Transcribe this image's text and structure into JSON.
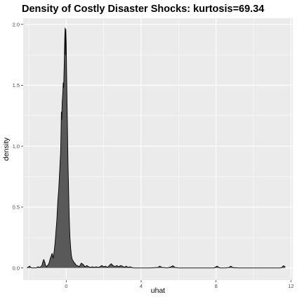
{
  "chart_data": {
    "type": "area",
    "title": "Density of Costly Disaster Shocks: kurtosis=69.34",
    "xlabel": "uhat",
    "ylabel": "density",
    "xlim": [
      -2.3,
      12.1
    ],
    "ylim": [
      -0.1,
      2.05
    ],
    "x_ticks": [
      0,
      4,
      8,
      12
    ],
    "x_tick_labels": [
      "0",
      "4",
      "8",
      "12"
    ],
    "y_ticks": [
      0.0,
      0.5,
      1.0,
      1.5,
      2.0
    ],
    "y_tick_labels": [
      "0.0",
      "0.5",
      "1.0",
      "1.5",
      "2.0"
    ],
    "grid": true,
    "legend": "none",
    "colors": {
      "panel": "#ebebeb",
      "grid": "#ffffff",
      "fill": "#595959",
      "line": "#000000"
    },
    "series": [
      {
        "x": [
          -2.1,
          -2.0,
          -1.95,
          -1.9,
          -1.8,
          -1.6,
          -1.5,
          -1.4,
          -1.3,
          -1.25,
          -1.2,
          -1.15,
          -1.1,
          -1.05,
          -1.0,
          -0.95,
          -0.9,
          -0.85,
          -0.8,
          -0.75,
          -0.7,
          -0.65,
          -0.6,
          -0.55,
          -0.5,
          -0.45,
          -0.4,
          -0.35,
          -0.3,
          -0.28,
          -0.26,
          -0.24,
          -0.22,
          -0.2,
          -0.18,
          -0.16,
          -0.14,
          -0.12,
          -0.1,
          -0.08,
          -0.06,
          -0.05,
          -0.04,
          -0.03,
          -0.02,
          -0.01,
          0.0,
          0.02,
          0.04,
          0.06,
          0.08,
          0.1,
          0.12,
          0.14,
          0.16,
          0.18,
          0.2,
          0.24,
          0.28,
          0.32,
          0.36,
          0.4,
          0.45,
          0.5,
          0.55,
          0.6,
          0.7,
          0.8,
          0.9,
          1.0,
          1.1,
          1.2,
          1.3,
          1.4,
          1.5,
          1.6,
          1.7,
          1.8,
          1.9,
          2.0,
          2.1,
          2.2,
          2.3,
          2.4,
          2.5,
          2.6,
          2.7,
          2.8,
          2.9,
          3.0,
          3.1,
          3.2,
          3.3,
          3.4,
          3.6,
          3.8,
          4.5,
          4.9,
          5.0,
          5.1,
          5.4,
          5.6,
          5.7,
          5.8,
          6.0,
          7.0,
          7.9,
          8.05,
          8.2,
          8.5,
          8.7,
          8.8,
          8.9,
          9.2,
          10.0,
          11.0,
          11.4,
          11.5,
          11.6,
          11.7
        ],
        "y": [
          0.0,
          0.01,
          0.015,
          0.005,
          0.0,
          0.002,
          0.01,
          0.005,
          0.02,
          0.05,
          0.07,
          0.05,
          0.02,
          0.01,
          0.02,
          0.03,
          0.05,
          0.08,
          0.1,
          0.12,
          0.08,
          0.13,
          0.2,
          0.3,
          0.4,
          0.55,
          0.65,
          0.8,
          0.95,
          1.1,
          1.28,
          1.22,
          1.35,
          1.4,
          1.45,
          1.52,
          1.48,
          1.6,
          1.72,
          1.88,
          1.97,
          1.75,
          1.82,
          1.86,
          1.96,
          1.9,
          1.85,
          1.6,
          1.4,
          1.22,
          1.0,
          0.82,
          0.7,
          0.55,
          0.42,
          0.33,
          0.25,
          0.16,
          0.1,
          0.07,
          0.06,
          0.05,
          0.04,
          0.03,
          0.02,
          0.02,
          0.01,
          0.04,
          0.03,
          0.01,
          0.02,
          0.01,
          0.005,
          0.01,
          0.005,
          0.01,
          0.005,
          0.01,
          0.02,
          0.01,
          0.015,
          0.005,
          0.02,
          0.035,
          0.02,
          0.01,
          0.02,
          0.01,
          0.02,
          0.015,
          0.005,
          0.015,
          0.005,
          0.01,
          0.0,
          0.0,
          0.0,
          0.005,
          0.015,
          0.005,
          0.0,
          0.01,
          0.018,
          0.005,
          0.0,
          0.0,
          0.0,
          0.015,
          0.0,
          0.0,
          0.005,
          0.015,
          0.003,
          0.0,
          0.0,
          0.0,
          0.0,
          0.003,
          0.018,
          0.01
        ]
      }
    ]
  }
}
